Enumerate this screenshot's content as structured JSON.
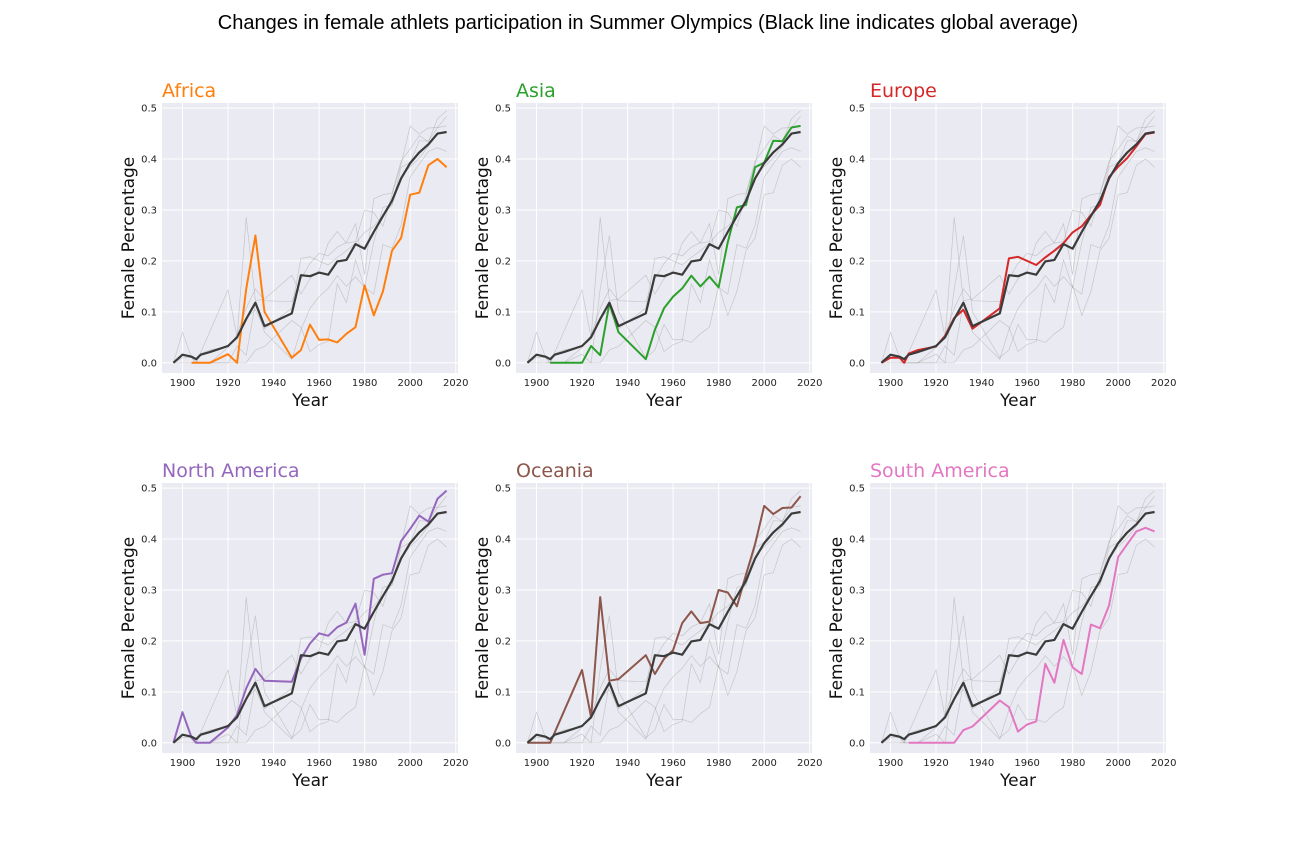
{
  "chart_data": {
    "type": "line",
    "title": "Changes in female athlets participation in Summer Olympics (Black line indicates global average)",
    "xlabel": "Year",
    "ylabel": "Female Percentage",
    "xlim": [
      1891,
      2021
    ],
    "ylim": [
      -0.02,
      0.51
    ],
    "xticks": [
      1900,
      1920,
      1940,
      1960,
      1980,
      2000,
      2020
    ],
    "yticks": [
      0.0,
      0.1,
      0.2,
      0.3,
      0.4,
      0.5
    ],
    "grid": true,
    "global_average": {
      "color": "#3b3b3b",
      "x": [
        1896,
        1900,
        1904,
        1906,
        1908,
        1912,
        1920,
        1924,
        1928,
        1932,
        1936,
        1948,
        1952,
        1956,
        1960,
        1964,
        1968,
        1972,
        1976,
        1980,
        1984,
        1988,
        1992,
        1996,
        2000,
        2004,
        2008,
        2012,
        2016
      ],
      "y": [
        0.0,
        0.016,
        0.012,
        0.007,
        0.016,
        0.021,
        0.033,
        0.05,
        0.086,
        0.118,
        0.072,
        0.097,
        0.172,
        0.17,
        0.177,
        0.173,
        0.199,
        0.202,
        0.233,
        0.224,
        0.257,
        0.288,
        0.318,
        0.362,
        0.392,
        0.413,
        0.429,
        0.45,
        0.453
      ]
    },
    "panels": [
      {
        "name": "Africa",
        "color": "#ff7f0e",
        "x": [
          1904,
          1908,
          1912,
          1920,
          1924,
          1928,
          1932,
          1936,
          1948,
          1952,
          1956,
          1960,
          1964,
          1968,
          1972,
          1976,
          1980,
          1984,
          1988,
          1992,
          1996,
          2000,
          2004,
          2008,
          2012,
          2016
        ],
        "y": [
          0.0,
          0.0,
          0.0,
          0.017,
          0.0,
          0.145,
          0.25,
          0.1,
          0.01,
          0.025,
          0.075,
          0.045,
          0.046,
          0.04,
          0.057,
          0.07,
          0.152,
          0.093,
          0.14,
          0.22,
          0.245,
          0.33,
          0.334,
          0.388,
          0.4,
          0.384
        ]
      },
      {
        "name": "Asia",
        "color": "#2ca02c",
        "x": [
          1906,
          1908,
          1912,
          1920,
          1924,
          1928,
          1932,
          1936,
          1948,
          1952,
          1956,
          1960,
          1964,
          1968,
          1972,
          1976,
          1980,
          1984,
          1988,
          1992,
          1996,
          2000,
          2004,
          2008,
          2012,
          2016
        ],
        "y": [
          0.0,
          0.0,
          0.0,
          0.0,
          0.033,
          0.015,
          0.117,
          0.06,
          0.007,
          0.065,
          0.107,
          0.13,
          0.146,
          0.171,
          0.15,
          0.169,
          0.148,
          0.237,
          0.305,
          0.31,
          0.384,
          0.393,
          0.436,
          0.435,
          0.462,
          0.465
        ]
      },
      {
        "name": "Europe",
        "color": "#d62728",
        "x": [
          1896,
          1900,
          1904,
          1906,
          1908,
          1912,
          1920,
          1924,
          1928,
          1932,
          1936,
          1948,
          1952,
          1956,
          1960,
          1964,
          1968,
          1972,
          1976,
          1980,
          1984,
          1988,
          1992,
          1996,
          2000,
          2004,
          2008,
          2012,
          2016
        ],
        "y": [
          0.0,
          0.01,
          0.01,
          0.0,
          0.018,
          0.025,
          0.032,
          0.053,
          0.088,
          0.104,
          0.067,
          0.107,
          0.205,
          0.208,
          0.2,
          0.192,
          0.207,
          0.22,
          0.235,
          0.256,
          0.268,
          0.29,
          0.31,
          0.365,
          0.385,
          0.402,
          0.425,
          0.449,
          0.452
        ]
      },
      {
        "name": "North America",
        "color": "#9467bd",
        "x": [
          1896,
          1900,
          1904,
          1906,
          1908,
          1912,
          1920,
          1924,
          1928,
          1932,
          1936,
          1948,
          1952,
          1956,
          1960,
          1964,
          1968,
          1972,
          1976,
          1980,
          1984,
          1988,
          1992,
          1996,
          2000,
          2004,
          2008,
          2012,
          2016
        ],
        "y": [
          0.0,
          0.06,
          0.01,
          0.0,
          0.0,
          0.0,
          0.03,
          0.055,
          0.107,
          0.145,
          0.122,
          0.12,
          0.165,
          0.195,
          0.215,
          0.21,
          0.227,
          0.236,
          0.273,
          0.173,
          0.322,
          0.33,
          0.333,
          0.396,
          0.42,
          0.446,
          0.434,
          0.479,
          0.495
        ]
      },
      {
        "name": "Oceania",
        "color": "#8c564b",
        "x": [
          1896,
          1900,
          1904,
          1906,
          1920,
          1924,
          1928,
          1932,
          1936,
          1948,
          1952,
          1956,
          1960,
          1964,
          1968,
          1972,
          1976,
          1980,
          1984,
          1988,
          1992,
          1996,
          2000,
          2004,
          2008,
          2012,
          2016
        ],
        "y": [
          0.0,
          0.0,
          0.0,
          0.0,
          0.143,
          0.05,
          0.286,
          0.122,
          0.125,
          0.172,
          0.135,
          0.165,
          0.182,
          0.235,
          0.258,
          0.235,
          0.238,
          0.3,
          0.295,
          0.268,
          0.33,
          0.39,
          0.465,
          0.449,
          0.461,
          0.462,
          0.484
        ]
      },
      {
        "name": "South America",
        "color": "#e377c2",
        "x": [
          1908,
          1912,
          1920,
          1924,
          1928,
          1932,
          1936,
          1948,
          1952,
          1956,
          1960,
          1964,
          1968,
          1972,
          1976,
          1980,
          1984,
          1988,
          1992,
          1996,
          2000,
          2004,
          2008,
          2012,
          2016
        ],
        "y": [
          0.0,
          0.0,
          0.0,
          0.0,
          0.0,
          0.025,
          0.032,
          0.083,
          0.07,
          0.022,
          0.036,
          0.042,
          0.155,
          0.118,
          0.202,
          0.148,
          0.135,
          0.232,
          0.225,
          0.27,
          0.365,
          0.39,
          0.415,
          0.422,
          0.415
        ]
      }
    ]
  }
}
